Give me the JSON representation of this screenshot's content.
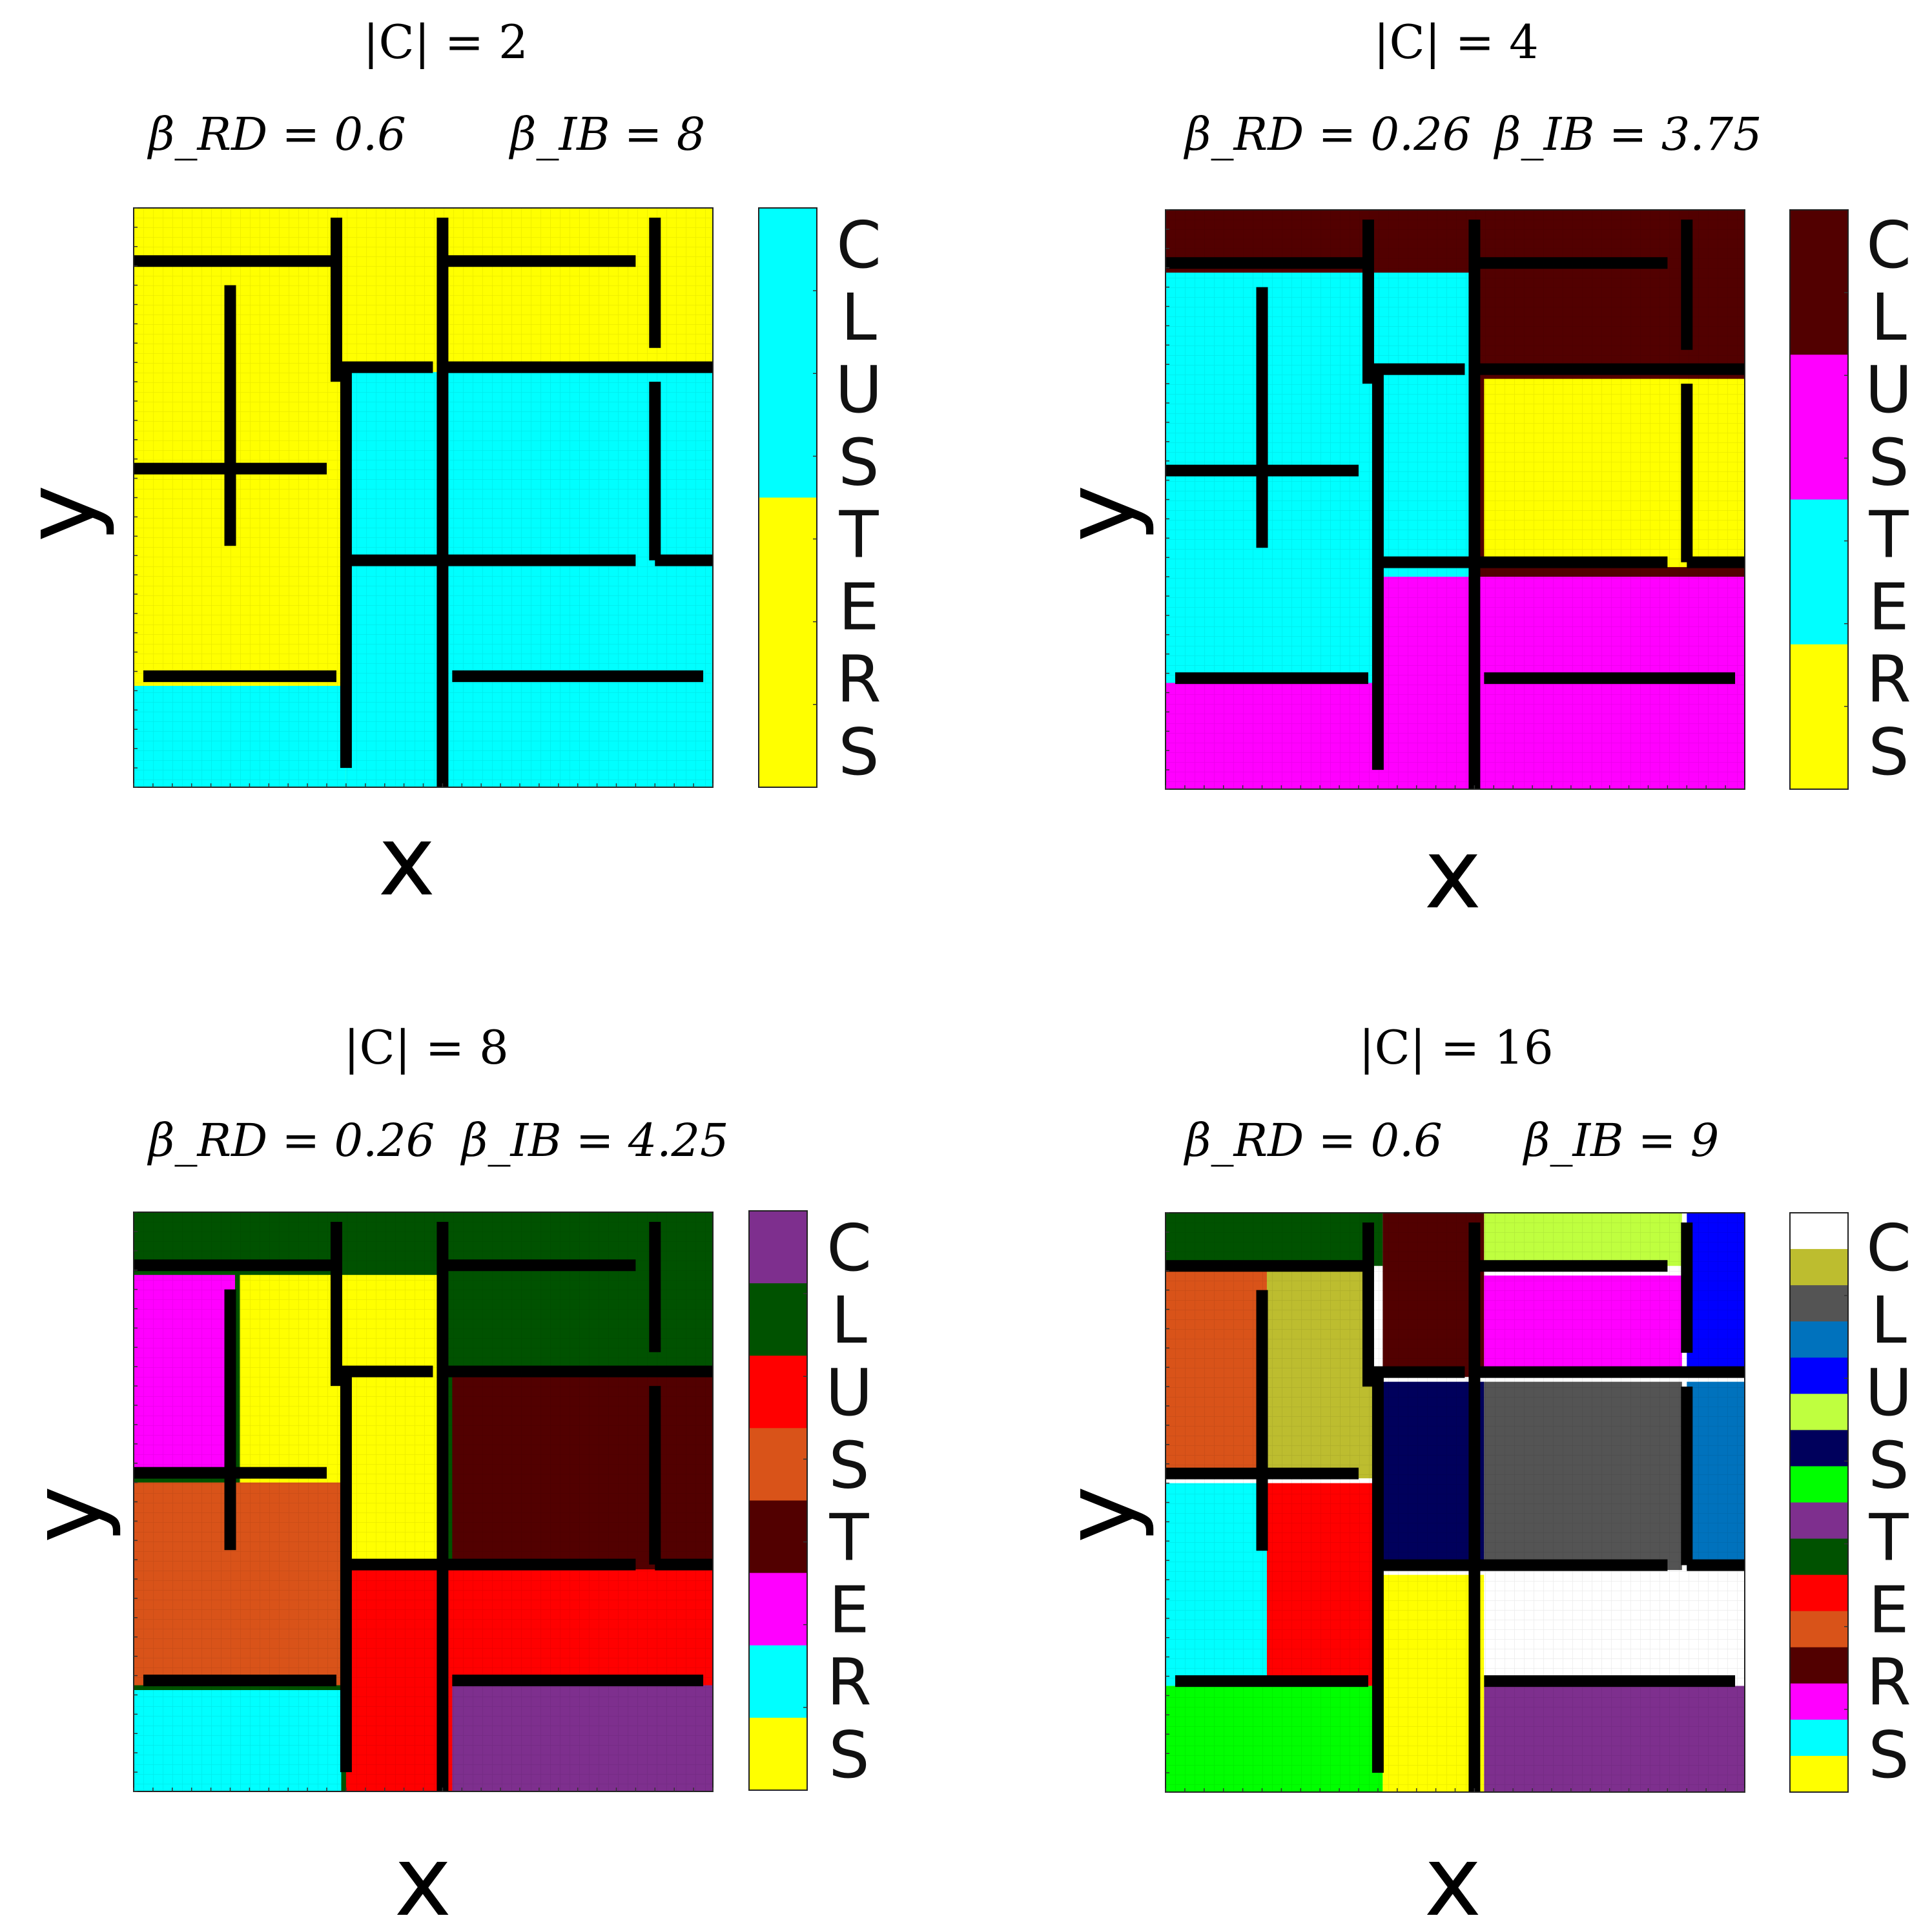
{
  "chart_data": [
    {
      "type": "heatmap",
      "title": "|C| = 2",
      "subtitle": {
        "beta_rd": "β_RD = 0.6",
        "beta_ib": "β_IB = 8"
      },
      "xlabel": "x",
      "ylabel": "y",
      "colorbar_label": "CLUSTERS",
      "colorbar": [
        "#00FFFF",
        "#FFFF00"
      ],
      "regions": [
        {
          "cluster": "#FFFF00",
          "x": [
            0,
            60
          ],
          "y": [
            0,
            60
          ]
        },
        {
          "cluster": "#00FFFF",
          "x": [
            0,
            22
          ],
          "y": [
            0,
            10.5
          ]
        },
        {
          "cluster": "#00FFFF",
          "x": [
            22,
            60
          ],
          "y": [
            0,
            43
          ]
        }
      ]
    },
    {
      "type": "heatmap",
      "title": "|C| = 4",
      "subtitle": {
        "beta_rd": "β_RD = 0.26",
        "beta_ib": "β_IB = 3.75"
      },
      "xlabel": "x",
      "ylabel": "y",
      "colorbar_label": "CLUSTERS",
      "colorbar": [
        "#520000",
        "#FF00FF",
        "#00FFFF",
        "#FFFF00"
      ],
      "regions": [
        {
          "cluster": "#520000",
          "x": [
            0,
            60
          ],
          "y": [
            0,
            60
          ]
        },
        {
          "cluster": "#00FFFF",
          "x": [
            0,
            32.5
          ],
          "y": [
            11,
            53.5
          ]
        },
        {
          "cluster": "#FF00FF",
          "x": [
            0,
            60
          ],
          "y": [
            0,
            11
          ]
        },
        {
          "cluster": "#FF00FF",
          "x": [
            22.5,
            60
          ],
          "y": [
            0,
            22
          ]
        },
        {
          "cluster": "#FFFF00",
          "x": [
            33,
            60
          ],
          "y": [
            23,
            42.5
          ]
        }
      ]
    },
    {
      "type": "heatmap",
      "title": "|C| = 8",
      "subtitle": {
        "beta_rd": "β_RD = 0.26",
        "beta_ib": "β_IB = 4.25"
      },
      "xlabel": "x",
      "ylabel": "y",
      "colorbar_label": "CLUSTERS",
      "colorbar": [
        "#7E2F8E",
        "#005200",
        "#FF0000",
        "#D95319",
        "#520000",
        "#FF00FF",
        "#00FFFF",
        "#FFFF00"
      ],
      "regions": [
        {
          "cluster": "#005200",
          "x": [
            0,
            60
          ],
          "y": [
            0,
            60
          ]
        },
        {
          "cluster": "#FFFF00",
          "x": [
            11,
            32.5
          ],
          "y": [
            22,
            53.5
          ]
        },
        {
          "cluster": "#FF00FF",
          "x": [
            0,
            10.5
          ],
          "y": [
            32.5,
            53.5
          ]
        },
        {
          "cluster": "#D95319",
          "x": [
            0,
            21.5
          ],
          "y": [
            11,
            32
          ]
        },
        {
          "cluster": "#00FFFF",
          "x": [
            0,
            21.5
          ],
          "y": [
            0,
            10.5
          ]
        },
        {
          "cluster": "#520000",
          "x": [
            33,
            60
          ],
          "y": [
            23,
            43
          ]
        },
        {
          "cluster": "#FF0000",
          "x": [
            22,
            60
          ],
          "y": [
            0,
            23
          ]
        },
        {
          "cluster": "#7E2F8E",
          "x": [
            33,
            60
          ],
          "y": [
            0,
            11
          ]
        }
      ]
    },
    {
      "type": "heatmap",
      "title": "|C| = 16",
      "subtitle": {
        "beta_rd": "β_RD = 0.6",
        "beta_ib": "β_IB = 9"
      },
      "xlabel": "x",
      "ylabel": "y",
      "colorbar_label": "CLUSTERS",
      "colorbar": [
        "#FFFFFF",
        "#BDBD2F",
        "#545454",
        "#0072BD",
        "#0000FF",
        "#BFFF3F",
        "#00005C",
        "#00FF00",
        "#7E2F8E",
        "#005200",
        "#FF0000",
        "#D95319",
        "#520000",
        "#FF00FF",
        "#00FFFF",
        "#FFFF00"
      ],
      "regions": [
        {
          "cluster": "#005200",
          "x": [
            0,
            22.5
          ],
          "y": [
            54.5,
            60
          ]
        },
        {
          "cluster": "#D95319",
          "x": [
            0,
            10.5
          ],
          "y": [
            32.5,
            54
          ]
        },
        {
          "cluster": "#BDBD2F",
          "x": [
            10.5,
            21.5
          ],
          "y": [
            32.5,
            54
          ]
        },
        {
          "cluster": "#00FFFF",
          "x": [
            0,
            10.5
          ],
          "y": [
            11,
            32
          ]
        },
        {
          "cluster": "#FF0000",
          "x": [
            10.5,
            21.5
          ],
          "y": [
            11,
            32
          ]
        },
        {
          "cluster": "#00FF00",
          "x": [
            0,
            22.5
          ],
          "y": [
            0,
            11
          ]
        },
        {
          "cluster": "#520000",
          "x": [
            22.5,
            33
          ],
          "y": [
            43,
            60
          ]
        },
        {
          "cluster": "#00005C",
          "x": [
            22.5,
            33
          ],
          "y": [
            23,
            42.5
          ]
        },
        {
          "cluster": "#FFFF00",
          "x": [
            22.5,
            33
          ],
          "y": [
            0,
            22.5
          ]
        },
        {
          "cluster": "#BFFF3F",
          "x": [
            33,
            53.5
          ],
          "y": [
            54.5,
            60
          ]
        },
        {
          "cluster": "#0000FF",
          "x": [
            54,
            60
          ],
          "y": [
            43,
            60
          ]
        },
        {
          "cluster": "#FF00FF",
          "x": [
            33,
            53.5
          ],
          "y": [
            43,
            53.5
          ]
        },
        {
          "cluster": "#545454",
          "x": [
            33,
            53.5
          ],
          "y": [
            23,
            42.5
          ]
        },
        {
          "cluster": "#0072BD",
          "x": [
            54,
            60
          ],
          "y": [
            23,
            42.5
          ]
        },
        {
          "cluster": "#FFFFFF",
          "x": [
            33,
            60
          ],
          "y": [
            12,
            22.5
          ]
        },
        {
          "cluster": "#7E2F8E",
          "x": [
            33,
            60
          ],
          "y": [
            0,
            11
          ]
        }
      ]
    }
  ]
}
